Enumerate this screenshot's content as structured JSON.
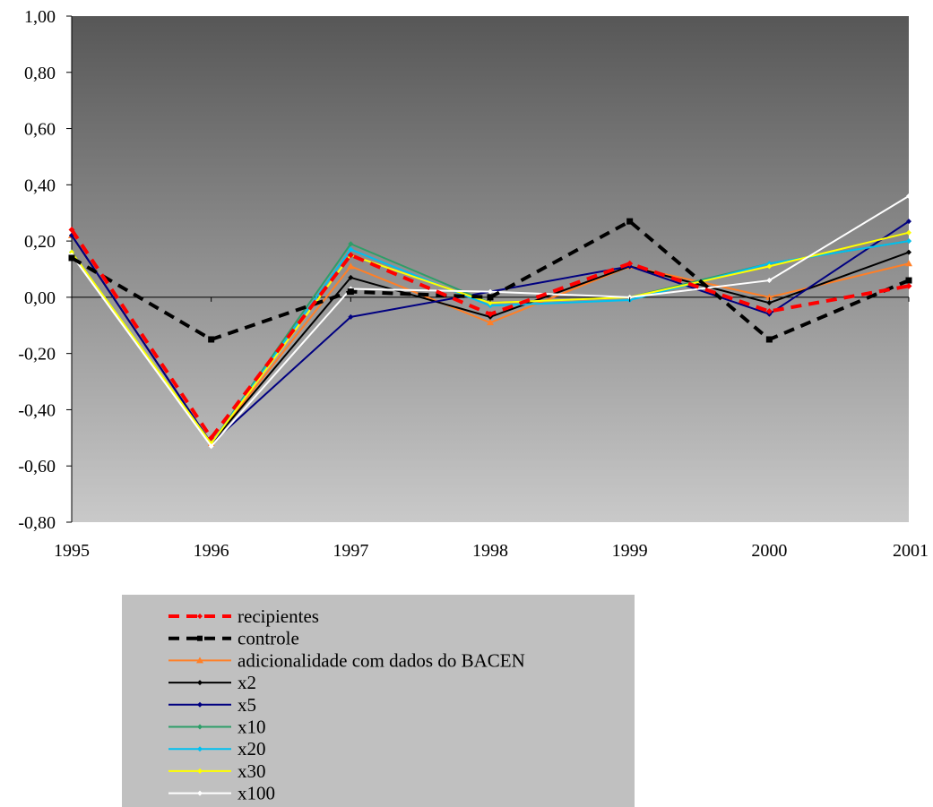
{
  "chart_data": {
    "type": "line",
    "title": "",
    "xlabel": "",
    "ylabel": "",
    "x": [
      "1995",
      "1996",
      "1997",
      "1998",
      "1999",
      "2000",
      "2001"
    ],
    "ylim": [
      -0.8,
      1.0
    ],
    "yticks": [
      1.0,
      0.8,
      0.6,
      0.4,
      0.2,
      0.0,
      -0.2,
      -0.4,
      -0.6,
      -0.8
    ],
    "ytick_labels": [
      "1,00",
      "0,80",
      "0,60",
      "0,40",
      "0,20",
      "0,00",
      "-0,20",
      "-0,40",
      "-0,60",
      "-0,80"
    ],
    "grid": false,
    "legend_position": "bottom",
    "series": [
      {
        "name": "recipientes",
        "color": "#ff0000",
        "dash": "dashed",
        "marker": "diamond",
        "values": [
          0.24,
          -0.5,
          0.15,
          -0.06,
          0.12,
          -0.05,
          0.04
        ]
      },
      {
        "name": "controle",
        "color": "#000000",
        "dash": "dashed",
        "marker": "square",
        "values": [
          0.14,
          -0.15,
          0.02,
          0.0,
          0.27,
          -0.15,
          0.06
        ]
      },
      {
        "name": "adicionalidade com dados do BACEN",
        "color": "#ff7f27",
        "dash": "solid",
        "marker": "triangle",
        "values": [
          0.22,
          -0.52,
          0.11,
          -0.09,
          0.11,
          0.0,
          0.12
        ]
      },
      {
        "name": "x2",
        "color": "#000000",
        "dash": "solid",
        "marker": "diamond",
        "values": [
          0.22,
          -0.52,
          0.07,
          -0.07,
          0.11,
          -0.02,
          0.16
        ]
      },
      {
        "name": "x5",
        "color": "#000080",
        "dash": "solid",
        "marker": "diamond",
        "values": [
          0.22,
          -0.52,
          -0.07,
          0.02,
          0.11,
          -0.06,
          0.27
        ]
      },
      {
        "name": "x10",
        "color": "#2e9e68",
        "dash": "solid",
        "marker": "diamond",
        "values": [
          0.16,
          -0.52,
          0.19,
          -0.02,
          0.0,
          0.12,
          0.2
        ]
      },
      {
        "name": "x20",
        "color": "#00c0f0",
        "dash": "solid",
        "marker": "diamond",
        "values": [
          0.16,
          -0.52,
          0.17,
          -0.03,
          -0.01,
          0.12,
          0.2
        ]
      },
      {
        "name": "x30",
        "color": "#ffff00",
        "dash": "solid",
        "marker": "diamond",
        "values": [
          0.16,
          -0.52,
          0.15,
          -0.02,
          0.0,
          0.11,
          0.23
        ]
      },
      {
        "name": "x100",
        "color": "#ffffff",
        "dash": "solid",
        "marker": "diamond",
        "values": [
          0.15,
          -0.53,
          0.03,
          0.02,
          0.0,
          0.06,
          0.36
        ]
      }
    ]
  }
}
